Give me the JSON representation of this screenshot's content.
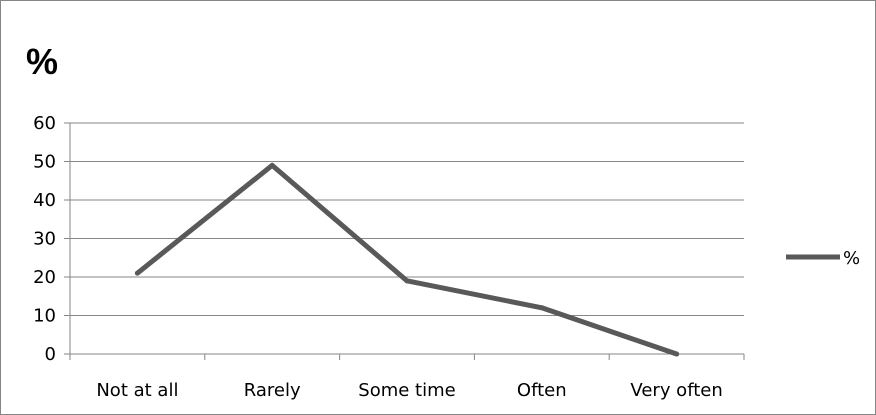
{
  "chart_data": {
    "type": "line",
    "title": "%",
    "xlabel": "",
    "ylabel": "",
    "categories": [
      "Not at all",
      "Rarely",
      "Some time",
      "Often",
      "Very often"
    ],
    "series": [
      {
        "name": "%",
        "values": [
          21,
          49,
          19,
          12,
          0
        ],
        "color": "#595959"
      }
    ],
    "ylim": [
      0,
      60
    ],
    "yticks": [
      0,
      10,
      20,
      30,
      40,
      50,
      60
    ],
    "grid": true,
    "legend_position": "right",
    "colors": {
      "grid": "#868686",
      "axis": "#868686",
      "border": "#868686"
    }
  }
}
